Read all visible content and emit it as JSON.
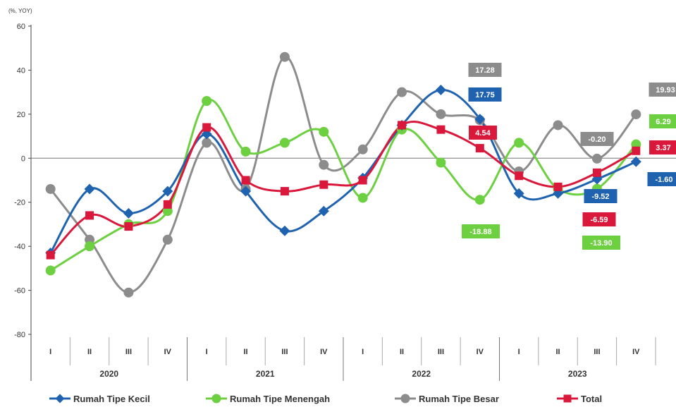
{
  "chart_data": {
    "type": "line",
    "unit_label": "(%, YOY)",
    "ylim": [
      -80,
      60
    ],
    "yticks": [
      60,
      40,
      20,
      0,
      -20,
      -40,
      -60,
      -80
    ],
    "quarters": [
      "I",
      "II",
      "III",
      "IV",
      "I",
      "II",
      "III",
      "IV",
      "I",
      "II",
      "III",
      "IV",
      "I",
      "II",
      "III",
      "IV"
    ],
    "years": [
      "2020",
      "2021",
      "2022",
      "2023"
    ],
    "series": [
      {
        "name": "Rumah Tipe Kecil",
        "color": "#1f63b0",
        "marker": "diamond",
        "values": [
          -43,
          -14,
          -25,
          -15,
          11,
          -15,
          -33,
          -24,
          -9,
          15,
          31,
          17.75,
          -16,
          -16,
          -9.52,
          -1.6
        ]
      },
      {
        "name": "Rumah Tipe Menengah",
        "color": "#6dd040",
        "marker": "circle",
        "values": [
          -51,
          -40,
          -30,
          -24,
          26,
          3,
          7,
          12,
          -18,
          13,
          -2,
          -18.88,
          7,
          -14,
          -13.9,
          6.29
        ]
      },
      {
        "name": "Rumah Tipe Besar",
        "color": "#8c8c8c",
        "marker": "circle",
        "values": [
          -14,
          -37,
          -61,
          -37,
          7,
          -14,
          46,
          -3,
          4,
          30,
          20,
          17.28,
          -6,
          15,
          -0.2,
          19.93
        ]
      },
      {
        "name": "Total",
        "color": "#d9183b",
        "marker": "square",
        "values": [
          -44,
          -26,
          -31,
          -21,
          14,
          -10,
          -15,
          -12,
          -10,
          15,
          13,
          4.54,
          -8,
          -13,
          -6.59,
          3.37
        ]
      }
    ],
    "annotations": [
      {
        "series": 2,
        "index": 11,
        "text": "17.28",
        "color": "#8c8c8c"
      },
      {
        "series": 0,
        "index": 11,
        "text": "17.75",
        "color": "#1f63b0"
      },
      {
        "series": 3,
        "index": 11,
        "text": "4.54",
        "color": "#d9183b"
      },
      {
        "series": 1,
        "index": 11,
        "text": "-18.88",
        "color": "#6dd040"
      },
      {
        "series": 2,
        "index": 14,
        "text": "-0.20",
        "color": "#8c8c8c"
      },
      {
        "series": 0,
        "index": 14,
        "text": "-9.52",
        "color": "#1f63b0"
      },
      {
        "series": 3,
        "index": 14,
        "text": "-6.59",
        "color": "#d9183b"
      },
      {
        "series": 1,
        "index": 14,
        "text": "-13.90",
        "color": "#6dd040"
      },
      {
        "series": 2,
        "index": 15,
        "text": "19.93",
        "color": "#8c8c8c"
      },
      {
        "series": 1,
        "index": 15,
        "text": "6.29",
        "color": "#6dd040"
      },
      {
        "series": 3,
        "index": 15,
        "text": "3.37",
        "color": "#d9183b"
      },
      {
        "series": 0,
        "index": 15,
        "text": "-1.60",
        "color": "#1f63b0"
      }
    ]
  }
}
